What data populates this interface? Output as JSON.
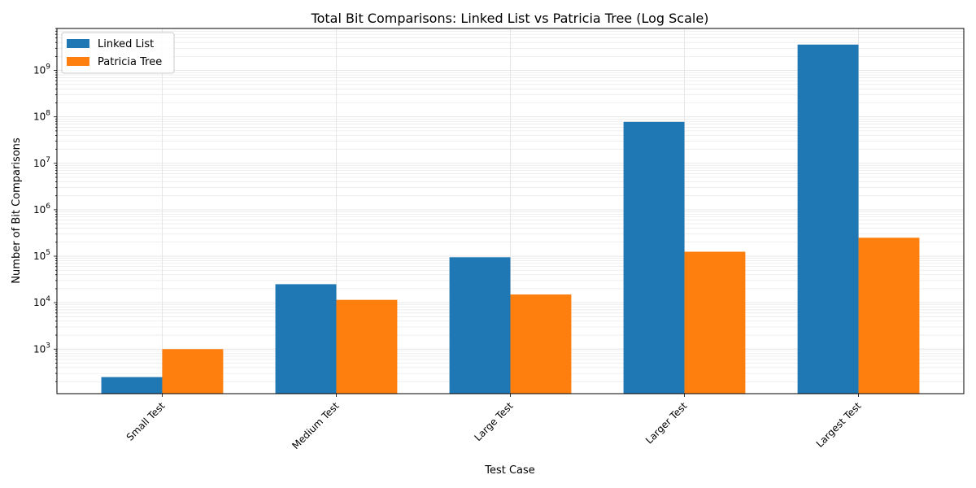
{
  "chart_data": {
    "type": "bar",
    "title": "Total Bit Comparisons: Linked List vs Patricia Tree (Log Scale)",
    "xlabel": "Test Case",
    "ylabel": "Number of Bit Comparisons",
    "yscale": "log",
    "ylim": [
      110,
      8000000000
    ],
    "grid": true,
    "legend_position": "top-left",
    "categories": [
      "Small Test",
      "Medium Test",
      "Large Test",
      "Larger Test",
      "Largest Test"
    ],
    "series": [
      {
        "name": "Linked List",
        "color": "#1f77b4",
        "values": [
          250,
          25000,
          95000,
          78000000,
          3600000000
        ]
      },
      {
        "name": "Patricia Tree",
        "color": "#ff7f0e",
        "values": [
          1000,
          11500,
          15000,
          125000,
          250000
        ]
      }
    ],
    "y_ticks": [
      {
        "exp": "3",
        "value": 1000
      },
      {
        "exp": "4",
        "value": 10000
      },
      {
        "exp": "5",
        "value": 100000
      },
      {
        "exp": "6",
        "value": 1000000
      },
      {
        "exp": "7",
        "value": 10000000
      },
      {
        "exp": "8",
        "value": 100000000
      },
      {
        "exp": "9",
        "value": 1000000000
      }
    ]
  }
}
